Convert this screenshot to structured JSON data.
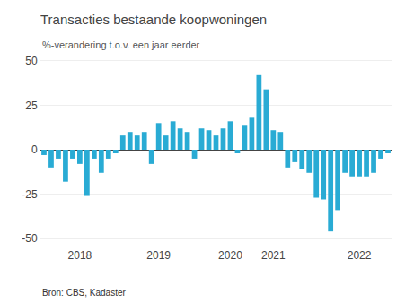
{
  "chart_data": {
    "type": "bar",
    "title": "Transacties bestaande koopwoningen",
    "subtitle": "%-verandering t.o.v. een jaar eerder",
    "annotations": [
      "Bron: CBS, Kadaster"
    ],
    "categories": [
      null,
      null,
      null,
      null,
      null,
      "2018",
      null,
      null,
      null,
      null,
      null,
      null,
      null,
      null,
      null,
      null,
      "2019",
      null,
      null,
      null,
      null,
      null,
      null,
      null,
      null,
      null,
      "2020",
      null,
      null,
      null,
      null,
      null,
      "2021",
      null,
      null,
      null,
      null,
      null,
      null,
      null,
      null,
      null,
      null,
      null,
      "2022",
      null,
      null,
      null,
      null
    ],
    "values": [
      -3,
      -10,
      -5,
      -18,
      -5,
      -8,
      -26,
      -5,
      -13,
      -5,
      -2,
      8,
      10,
      8,
      10,
      -8,
      15,
      8,
      16,
      12,
      10,
      -5,
      12,
      11,
      8,
      12,
      16,
      -2,
      14,
      18,
      42,
      34,
      11,
      10,
      -10,
      -7,
      -11,
      -13,
      -27,
      -28,
      -46,
      -34,
      -13,
      -15,
      -15,
      -15,
      -13,
      -5,
      -2
    ],
    "color": "#29ABD4",
    "ylim": [
      -55,
      53
    ],
    "yticks": [
      -50,
      -25,
      0,
      25,
      50
    ],
    "grid": true
  }
}
